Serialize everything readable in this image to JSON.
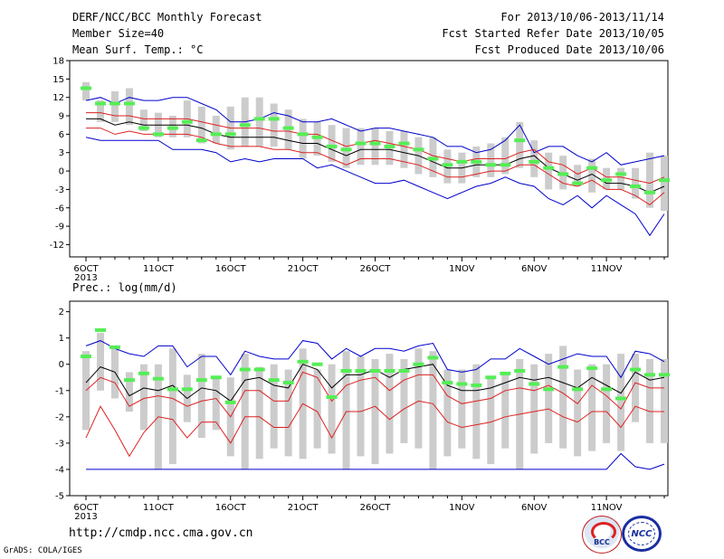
{
  "header": {
    "title": "DERF/NCC/BCC Monthly Forecast",
    "member_size": "Member Size=40",
    "variable": "Mean Surf. Temp.: °C",
    "period": "For 2013/10/06-2013/11/14",
    "fcst_started": "Fcst Started Refer Date 2013/10/05",
    "fcst_produced": "Fcst Produced Date 2013/10/06"
  },
  "footer": {
    "url": "http://cmdp.ncc.cma.gov.cn",
    "grads": "GrADS: COLA/IGES",
    "logo_bcc": "BCC",
    "logo_ncc": "NCC"
  },
  "colors": {
    "box": "#cccccc",
    "obs_marker": "#55ee55",
    "ens_mean": "#000000",
    "spread": "#dd2222",
    "envelope": "#0000cc"
  },
  "chart_data": [
    {
      "type": "line",
      "title": "Mean Surf. Temp.: °C",
      "ylim": [
        -14,
        18
      ],
      "yticks": [
        -12,
        -9,
        -6,
        -3,
        0,
        3,
        6,
        9,
        12,
        15,
        18
      ],
      "x_day_range": [
        0,
        39
      ],
      "xtick_labels": [
        {
          "day": 0,
          "label": "6OCT"
        },
        {
          "day": 5,
          "label": "11OCT"
        },
        {
          "day": 10,
          "label": "16OCT"
        },
        {
          "day": 15,
          "label": "21OCT"
        },
        {
          "day": 20,
          "label": "26OCT"
        },
        {
          "day": 26,
          "label": "1NOV"
        },
        {
          "day": 31,
          "label": "6NOV"
        },
        {
          "day": 36,
          "label": "11NOV"
        }
      ],
      "year_label": "2013",
      "box_low": [
        11.5,
        8,
        8,
        7.5,
        6.5,
        5.5,
        5.5,
        5.5,
        4.5,
        4.5,
        3.5,
        4,
        4,
        4,
        3.5,
        2,
        2.5,
        1.5,
        0.5,
        1,
        1,
        1,
        0.5,
        -0.5,
        -1,
        -2,
        -2,
        -1,
        -1,
        -0.5,
        0.5,
        -1,
        -3,
        -3,
        -2.5,
        -3.5,
        -3,
        -3,
        -4.5,
        -6,
        -6.5
      ],
      "box_high": [
        14.5,
        11.5,
        13,
        13.5,
        10,
        9.5,
        9,
        11.5,
        10.5,
        9,
        10.5,
        12,
        12,
        11,
        10,
        8.5,
        8,
        7.5,
        7,
        7,
        7,
        6.5,
        6.5,
        5.5,
        5.5,
        3.5,
        3,
        4,
        4.5,
        5.5,
        8,
        5,
        3,
        2.5,
        1,
        2,
        0.5,
        0.5,
        0.5,
        3,
        2.5
      ],
      "obs": [
        13.5,
        11,
        11,
        11,
        7,
        6,
        7,
        8,
        5,
        6,
        6,
        7.5,
        8.5,
        8.5,
        7,
        6,
        5.5,
        4,
        3.5,
        4.5,
        4.5,
        4,
        4.5,
        3.5,
        2,
        1,
        1.5,
        1.5,
        1,
        1,
        5,
        1.5,
        0.5,
        -0.5,
        -2,
        0.5,
        -1.5,
        -0.5,
        -2.5,
        -3.5,
        -1.5
      ],
      "ens_mean": [
        8.5,
        8.5,
        7.5,
        8,
        7.5,
        7.5,
        7.5,
        7.5,
        7,
        6,
        5.5,
        5.5,
        5.5,
        5.5,
        5,
        4.5,
        4.5,
        3.5,
        2.5,
        3.5,
        3.5,
        3.5,
        3,
        2.5,
        1.5,
        0.5,
        0.5,
        1,
        1,
        1,
        2,
        2.5,
        0.5,
        -0.5,
        -1.5,
        -0.5,
        -2,
        -2,
        -2.5,
        -3.5,
        -2.5
      ],
      "upper": [
        9.5,
        9.5,
        9,
        9,
        8.5,
        8.5,
        8.5,
        8.5,
        8,
        7.5,
        7,
        7,
        7,
        6.5,
        6.5,
        6,
        6,
        5,
        4,
        4.5,
        5,
        4.5,
        4,
        3.5,
        2.5,
        2,
        1.5,
        2,
        2,
        2,
        3,
        3.5,
        1.5,
        1,
        -0.5,
        0.5,
        -1,
        -1,
        -1.5,
        -2,
        -1
      ],
      "lower": [
        7,
        7,
        6,
        6.5,
        6,
        6,
        6,
        6,
        5.5,
        4.5,
        4,
        4,
        4,
        3.5,
        3.5,
        3,
        3,
        2,
        1,
        2,
        2,
        2,
        1.5,
        1,
        0,
        -1,
        -1,
        -0.5,
        0,
        0,
        1,
        1,
        -0.5,
        -2,
        -2.5,
        -1.5,
        -3,
        -3,
        -4,
        -5.5,
        -3.5
      ],
      "max": [
        11.5,
        12,
        11,
        12,
        11.5,
        11.5,
        12,
        12,
        11,
        10,
        8,
        8,
        8.5,
        9.5,
        9,
        8,
        8,
        8.5,
        7.5,
        6.5,
        7,
        7,
        6.5,
        6,
        5.5,
        4,
        4,
        3,
        3.5,
        5,
        7.5,
        3,
        4,
        4,
        2.5,
        1.5,
        3,
        1,
        1.5,
        2,
        2.5
      ],
      "min": [
        5.5,
        5,
        5,
        5,
        5,
        5,
        3.5,
        3.5,
        3.5,
        3,
        1.5,
        2,
        1.5,
        2,
        2,
        2,
        0.5,
        1,
        0,
        -1,
        -2,
        -2,
        -1.5,
        -2.5,
        -3.5,
        -4.5,
        -3.5,
        -2.5,
        -2,
        -1,
        -2,
        -2.5,
        -4.5,
        -5.5,
        -4,
        -6,
        -4,
        -5.5,
        -7,
        -10.5,
        -7
      ]
    },
    {
      "type": "line",
      "title": "Prec.: log(mm/d)",
      "ylim": [
        -5,
        2.4
      ],
      "yticks": [
        -5,
        -4,
        -3,
        -2,
        -1,
        0,
        1,
        2
      ],
      "x_day_range": [
        0,
        39
      ],
      "xtick_labels": [
        {
          "day": 0,
          "label": "6OCT"
        },
        {
          "day": 5,
          "label": "11OCT"
        },
        {
          "day": 10,
          "label": "16OCT"
        },
        {
          "day": 15,
          "label": "21OCT"
        },
        {
          "day": 20,
          "label": "26OCT"
        },
        {
          "day": 26,
          "label": "1NOV"
        },
        {
          "day": 31,
          "label": "6NOV"
        },
        {
          "day": 36,
          "label": "11NOV"
        }
      ],
      "year_label": "2013",
      "box_low": [
        -2.5,
        -1,
        -1.3,
        -1.8,
        -2.5,
        -4,
        -3.8,
        -2.2,
        -2.8,
        -2.5,
        -3.5,
        -4,
        -3.6,
        -3.2,
        -3.5,
        -3.6,
        -3.2,
        -3.4,
        -4,
        -3.5,
        -3.8,
        -3.4,
        -3,
        -3.2,
        -4,
        -3.5,
        -3.2,
        -3.6,
        -3.8,
        -3.2,
        -4,
        -3.4,
        -3,
        -3.2,
        -3.5,
        -3.3,
        -3,
        -3.3,
        -2.2,
        -3,
        -3
      ],
      "box_high": [
        0.5,
        1.2,
        0.7,
        -0.3,
        0,
        0,
        0.6,
        -0.4,
        0.4,
        -0.5,
        -0.5,
        0.4,
        -0.1,
        0,
        -0.2,
        0.6,
        -0.2,
        0,
        0.5,
        0.3,
        0.2,
        0.4,
        0.2,
        0.6,
        0.5,
        -0.2,
        -0.2,
        0,
        -0.5,
        -0.3,
        0.2,
        0,
        0.4,
        0.7,
        -0.2,
        0,
        0,
        0.4,
        0.4,
        0.2,
        0.2
      ],
      "obs": [
        0.3,
        1.3,
        0.65,
        -0.6,
        -0.35,
        -0.55,
        -0.95,
        -0.95,
        -0.6,
        -0.5,
        -1.45,
        -0.2,
        -0.2,
        -0.6,
        -0.7,
        0.1,
        0,
        -1.25,
        -0.25,
        -0.25,
        -0.25,
        -0.25,
        -0.25,
        0,
        0.25,
        -0.7,
        -0.75,
        -0.8,
        -0.5,
        -0.35,
        -0.25,
        -0.75,
        -0.95,
        -0.1,
        -0.95,
        -0.15,
        -0.95,
        -1.3,
        -0.2,
        -0.4,
        -0.4
      ],
      "ens_mean": [
        -0.7,
        -0.1,
        -0.3,
        -1.2,
        -0.9,
        -1,
        -0.8,
        -1.3,
        -0.9,
        -1,
        -1.4,
        -0.6,
        -0.5,
        -0.8,
        -0.9,
        0,
        -0.2,
        -0.9,
        -0.4,
        -0.4,
        -0.2,
        -0.5,
        -0.2,
        -0.1,
        0,
        -0.8,
        -1,
        -1,
        -0.9,
        -0.7,
        -0.5,
        -0.6,
        -0.5,
        -0.7,
        -0.9,
        -0.5,
        -0.8,
        -1.1,
        -0.3,
        -0.6,
        -0.5
      ],
      "upper": [
        -1,
        -0.5,
        -0.7,
        -1.6,
        -1.3,
        -1.2,
        -1.3,
        -1.6,
        -1.4,
        -1.3,
        -2,
        -1,
        -1,
        -1.4,
        -1.4,
        -0.3,
        -0.5,
        -1.4,
        -0.8,
        -0.6,
        -0.5,
        -1,
        -0.6,
        -0.4,
        -0.4,
        -1.2,
        -1.5,
        -1.4,
        -1.3,
        -1,
        -0.9,
        -1,
        -0.8,
        -1.1,
        -1.5,
        -0.8,
        -1.2,
        -1.7,
        -0.7,
        -0.9,
        -0.9
      ],
      "lower": [
        -2.8,
        -1.6,
        -2.5,
        -3.5,
        -2.6,
        -2,
        -2.1,
        -2.8,
        -2.2,
        -2.2,
        -3,
        -2,
        -2,
        -2.4,
        -2.4,
        -1.5,
        -1.8,
        -2.8,
        -1.8,
        -1.8,
        -1.6,
        -2.1,
        -1.7,
        -1.4,
        -1.5,
        -2.2,
        -2.4,
        -2.3,
        -2.2,
        -2,
        -1.9,
        -1.8,
        -1.7,
        -2,
        -2.2,
        -1.8,
        -1.8,
        -2.4,
        -1.6,
        -1.8,
        -1.8
      ],
      "max": [
        0.7,
        0.9,
        0.6,
        0.4,
        0.3,
        0.7,
        0.7,
        -0.1,
        0.3,
        0.3,
        -0.4,
        0.5,
        0.3,
        0.2,
        0.2,
        0.9,
        0.8,
        0.2,
        0.6,
        0.3,
        0.6,
        0.6,
        0.5,
        0.7,
        0.8,
        -0.2,
        -0.3,
        -0.2,
        0.2,
        0.2,
        0.6,
        0.3,
        0,
        0.2,
        0.4,
        0.3,
        0.3,
        -0.5,
        0.5,
        0.4,
        0.1
      ],
      "min": [
        -4,
        -4,
        -4,
        -4,
        -4,
        -4,
        -4,
        -4,
        -4,
        -4,
        -4,
        -4,
        -4,
        -4,
        -4,
        -4,
        -4,
        -4,
        -4,
        -4,
        -4,
        -4,
        -4,
        -4,
        -4,
        -4,
        -4,
        -4,
        -4,
        -4,
        -4,
        -4,
        -4,
        -4,
        -4,
        -4,
        -4,
        -3.4,
        -3.9,
        -4,
        -3.8
      ]
    }
  ]
}
